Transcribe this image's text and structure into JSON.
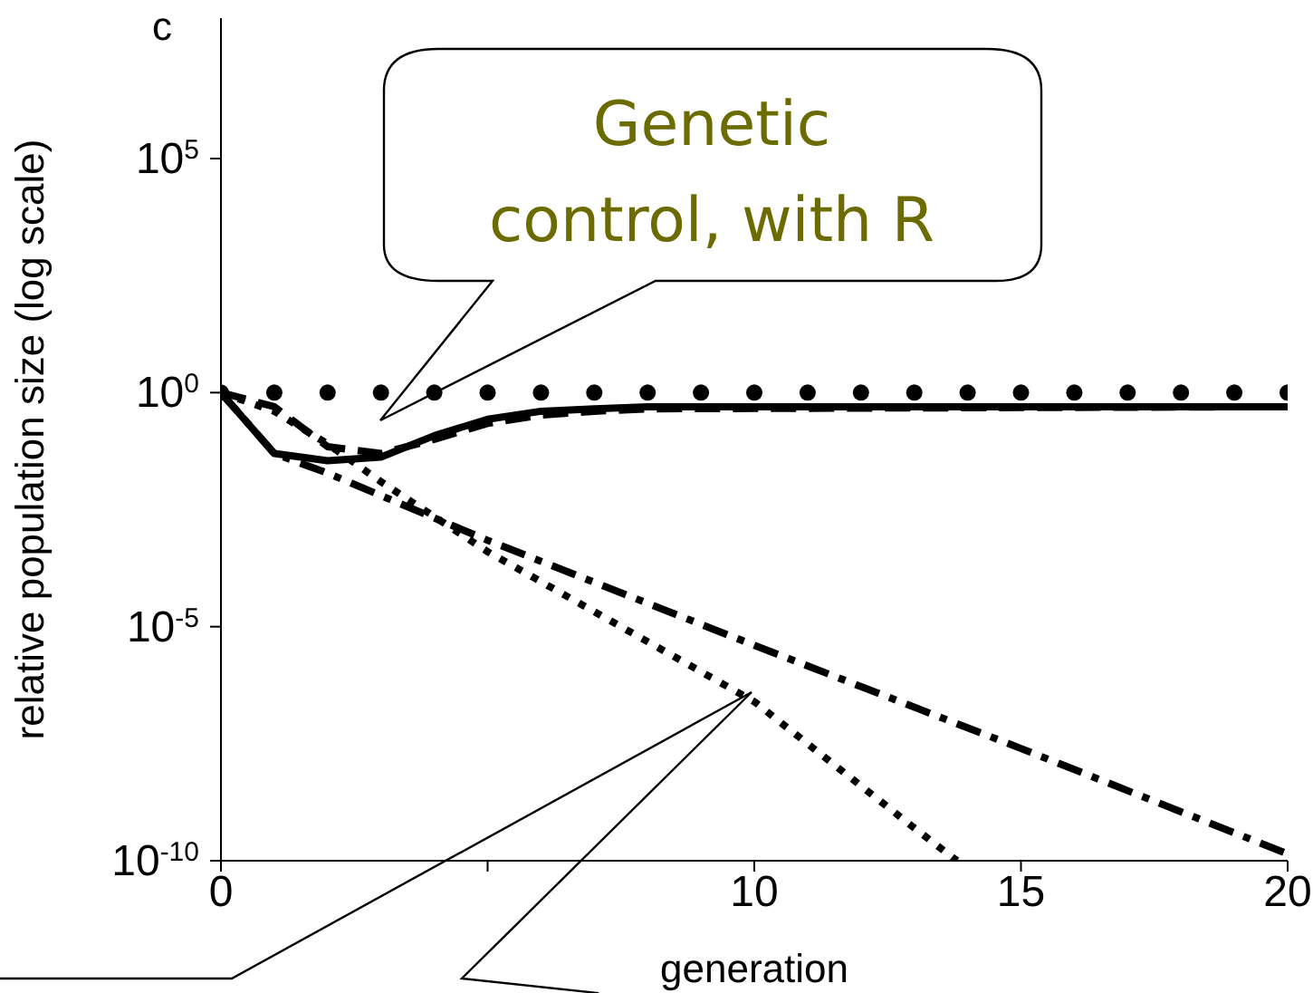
{
  "chart_data": {
    "type": "line",
    "title": "c",
    "xlabel": "generation",
    "ylabel": "relative population size (log scale)",
    "log": "y",
    "grid": false,
    "legend": false,
    "xlim": [
      0,
      20
    ],
    "xticks": [
      0,
      {
        "value": 5,
        "label": null
      },
      10,
      15,
      20
    ],
    "ylim": [
      1e-10,
      100000000.0
    ],
    "yticks": [
      {
        "value": 1e-10,
        "label": "10$^{-10}$"
      },
      {
        "value": 1e-05,
        "label": "10$^{-5}$"
      },
      {
        "value": 1,
        "label": "10$^{0}$"
      },
      {
        "value": 100000,
        "label": "10$^{5}$"
      }
    ],
    "annotations": [
      "Genetic control, with R"
    ],
    "series": [
      {
        "type": "scatter",
        "color": "#000000",
        "marker": "circle",
        "x": [
          0,
          1,
          2,
          3,
          4,
          5,
          6,
          7,
          8,
          9,
          10,
          11,
          12,
          13,
          14,
          15,
          16,
          17,
          18,
          19,
          20
        ],
        "values": [
          1,
          1,
          1,
          1,
          1,
          1,
          1,
          1,
          1,
          1,
          1,
          1,
          1,
          1,
          1,
          1,
          1,
          1,
          1,
          1,
          1
        ]
      },
      {
        "color": "#000000",
        "line_style": "solid",
        "x": [
          0,
          1,
          2,
          3,
          4,
          5,
          6,
          7,
          8,
          20
        ],
        "values": [
          1,
          0.05,
          0.035,
          0.042,
          0.12,
          0.27,
          0.4,
          0.45,
          0.5,
          0.5
        ]
      },
      {
        "color": "#000000",
        "line_style": "dashed",
        "x": [
          0,
          1,
          2,
          3,
          4,
          5,
          6,
          7,
          8,
          20
        ],
        "values": [
          1,
          0.5,
          0.07,
          0.05,
          0.1,
          0.22,
          0.33,
          0.4,
          0.45,
          0.5
        ]
      },
      {
        "color": "#000000",
        "line_style": "dashdot",
        "x": [
          0,
          1,
          2,
          3,
          5,
          10,
          15,
          20
        ],
        "values": [
          1,
          0.05,
          0.019,
          0.0063,
          0.0007,
          4e-06,
          2.5e-08,
          1.4e-10
        ]
      },
      {
        "color": "#000000",
        "line_style": "dotted",
        "x": [
          0,
          1,
          2,
          3,
          5,
          10,
          13,
          13.8
        ],
        "values": [
          1,
          0.4,
          0.08,
          0.0125,
          0.0004,
          2.5e-07,
          5e-10,
          1e-10
        ]
      }
    ]
  }
}
